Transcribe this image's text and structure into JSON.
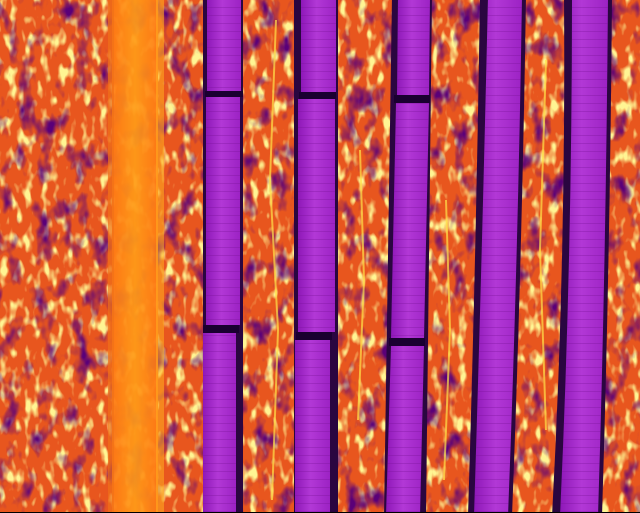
{
  "image": {
    "kind": "aerial thermal infrared photograph",
    "subject": "solar panel rows in a vegetated field with a dirt track",
    "palette": "ironbow",
    "colors": {
      "coldest": "#1a0030",
      "cold": "#5a1080",
      "panel": "#a020c8",
      "panel_light": "#b838d8",
      "warm": "#e8501c",
      "hot": "#ff9a10",
      "hottest": "#ffe84a"
    },
    "elements": {
      "track": "warm dirt track",
      "ground": "warm ground with scattered cool vegetation",
      "panel_rows": 5,
      "panel_row_gaps_visible": true
    }
  }
}
